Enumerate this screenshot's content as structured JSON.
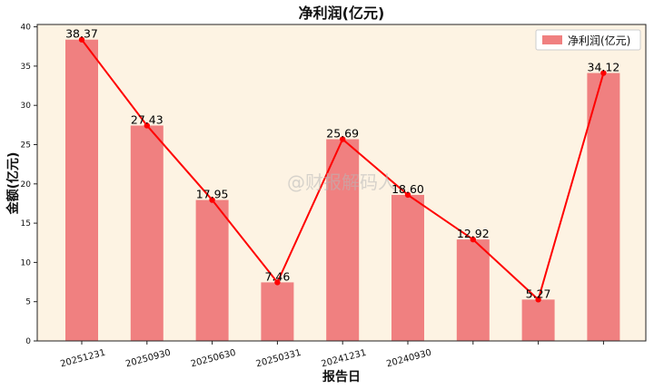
{
  "chart_data": {
    "type": "bar",
    "title": "净利润(亿元)",
    "xlabel": "报告日",
    "ylabel": "金额(亿元)",
    "categories": [
      "20251231",
      "20250930",
      "20250630",
      "20250331",
      "20241231",
      "20240930",
      "",
      "",
      ""
    ],
    "series": [
      {
        "name": "净利润(亿元)",
        "type": "bar",
        "values": [
          38.37,
          27.43,
          17.95,
          7.46,
          25.69,
          18.6,
          12.92,
          5.27,
          34.12
        ]
      },
      {
        "name": "",
        "type": "line",
        "values": [
          38.37,
          27.43,
          17.95,
          7.46,
          25.69,
          18.6,
          12.92,
          5.27,
          34.12
        ]
      }
    ],
    "data_labels": [
      "38.37",
      "27.43",
      "17.95",
      "7.46",
      "25.69",
      "18.60",
      "12.92",
      "5.27",
      "34.12"
    ],
    "ylim": [
      0,
      40.3
    ],
    "yticks": [
      0,
      5,
      10,
      15,
      20,
      25,
      30,
      35,
      40
    ],
    "legend_position": "top-right",
    "grid": false,
    "colors": {
      "bar": "#f08080",
      "line": "#ff0000",
      "background": "#fdf3e3"
    }
  },
  "watermark": "@财报解码人"
}
